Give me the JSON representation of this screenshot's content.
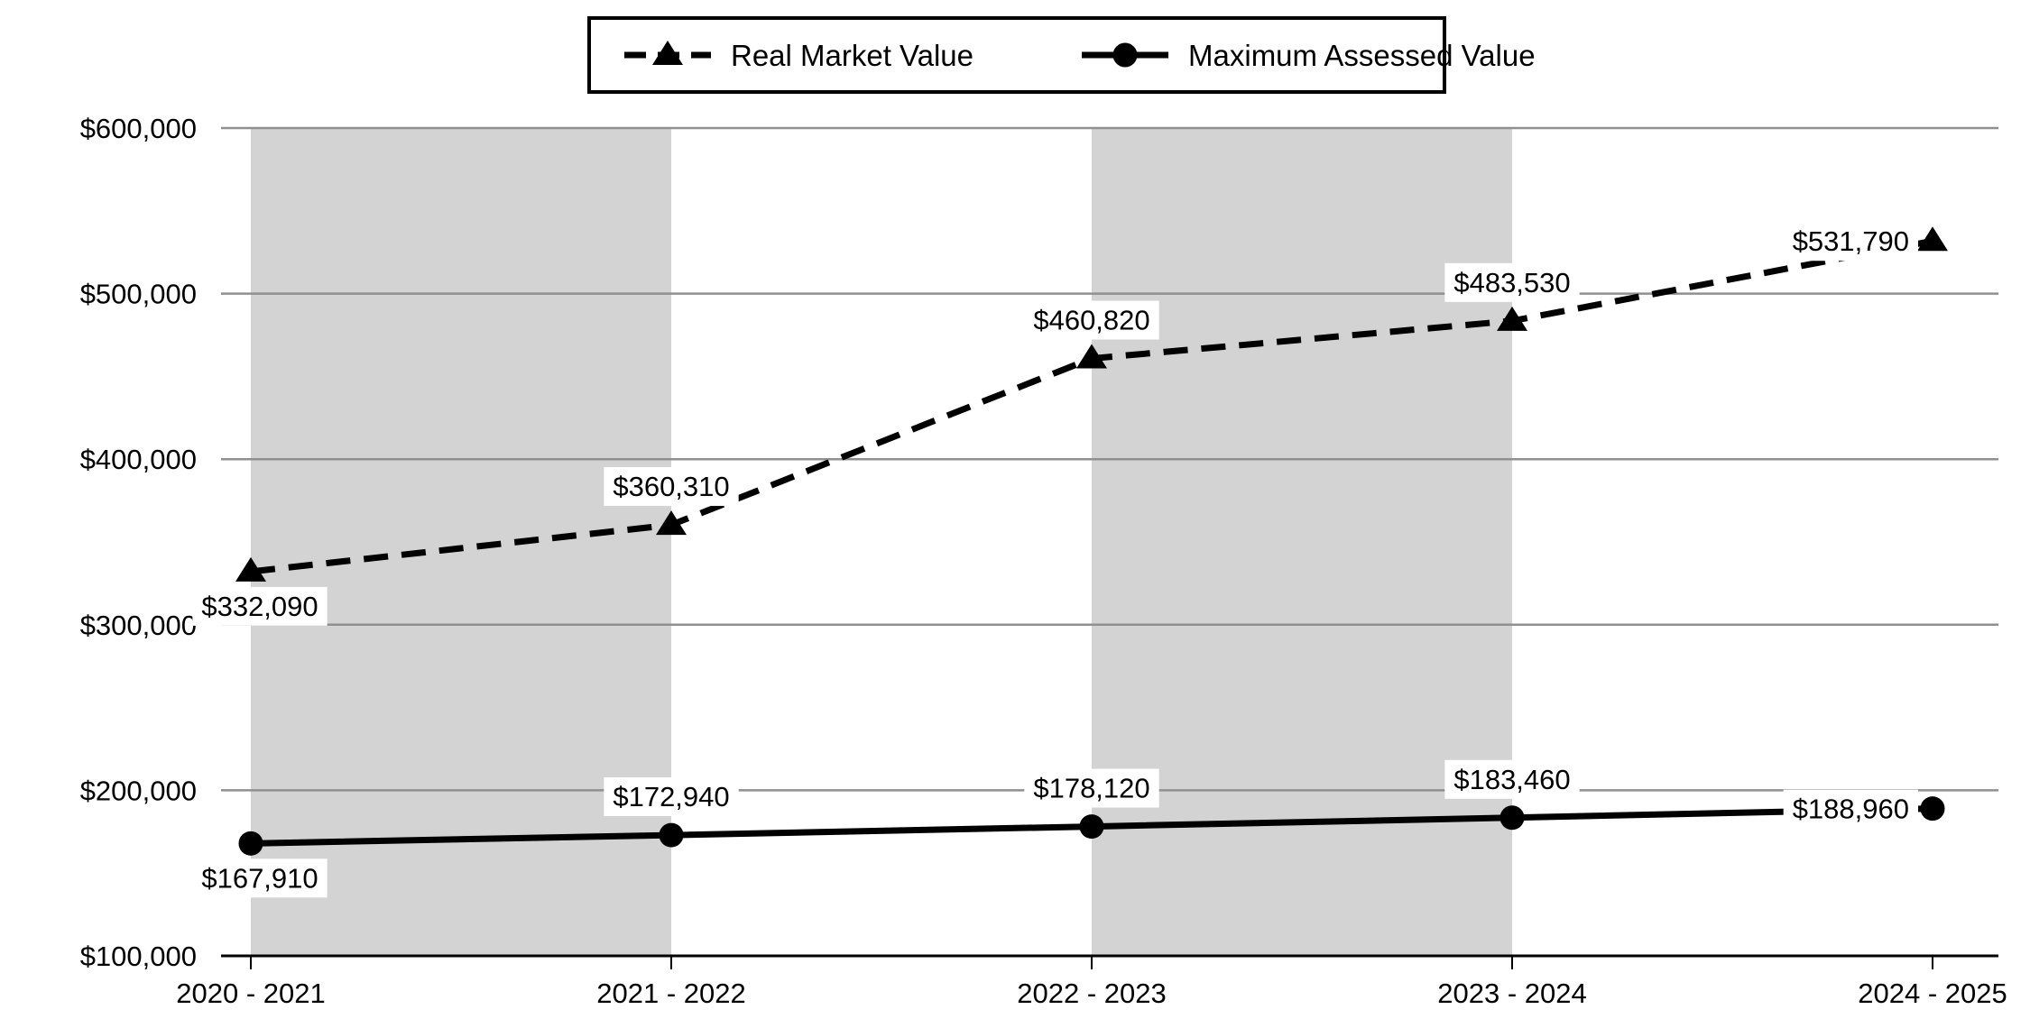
{
  "chart_data": {
    "type": "line",
    "title": "",
    "xlabel": "",
    "ylabel": "",
    "categories": [
      "2020 - 2021",
      "2021 - 2022",
      "2022 - 2023",
      "2023 - 2024",
      "2024 - 2025"
    ],
    "series": [
      {
        "name": "Real Market Value",
        "values": [
          332090,
          360310,
          460820,
          483530,
          531790
        ],
        "value_labels": [
          "$332,090",
          "$360,310",
          "$460,820",
          "$483,530",
          "$531,790"
        ],
        "line_style": "dashed",
        "marker": "triangle",
        "color": "#000000"
      },
      {
        "name": "Maximum Assessed Value",
        "values": [
          167910,
          172940,
          178120,
          183460,
          188960
        ],
        "value_labels": [
          "$167,910",
          "$172,940",
          "$178,120",
          "$183,460",
          "$188,960"
        ],
        "line_style": "solid",
        "marker": "circle",
        "color": "#000000"
      }
    ],
    "ylim": [
      100000,
      600000
    ],
    "ytick_step": 100000,
    "yticks": [
      {
        "value": 600000,
        "label": "$600,000"
      },
      {
        "value": 500000,
        "label": "$500,000"
      },
      {
        "value": 400000,
        "label": "$400,000"
      },
      {
        "value": 300000,
        "label": "$300,000"
      },
      {
        "value": 200000,
        "label": "$200,000"
      },
      {
        "value": 100000,
        "label": "$100,000"
      }
    ],
    "grid": "horizontal",
    "legend_position": "top-center",
    "plot_bands": {
      "spans": [
        [
          0,
          1
        ],
        [
          2,
          3
        ]
      ],
      "color": "#d3d3d3"
    },
    "colors": {
      "grid": "#909090",
      "axis": "#000000",
      "band": "#d3d3d3",
      "text": "#000000",
      "label_bg": "#ffffff",
      "legend_border": "#000000",
      "background": "#ffffff"
    }
  }
}
